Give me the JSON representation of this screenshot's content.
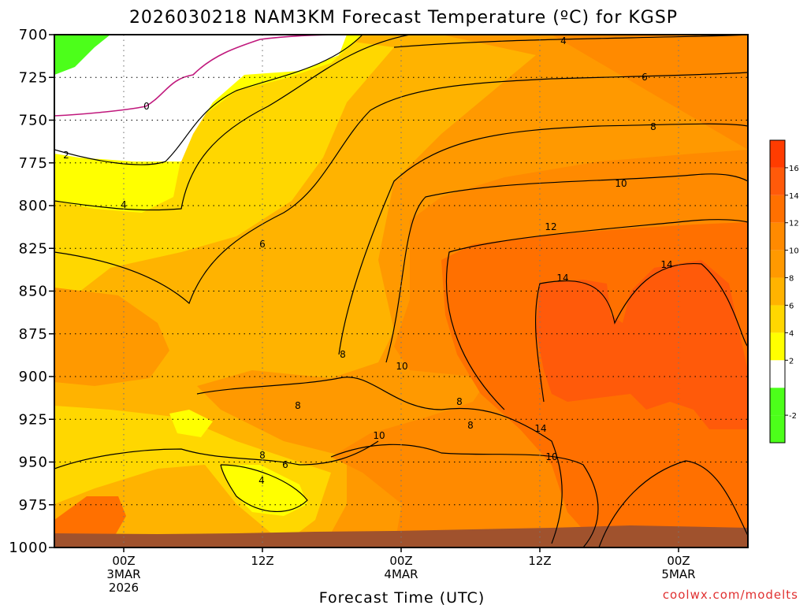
{
  "chart_data": {
    "type": "heatmap",
    "title": "2026030218 NAM3KM Forecast Temperature (ºC) for KGSP",
    "xlabel": "Forecast Time (UTC)",
    "ylabel": "",
    "credit": "coolwx.com/modelts",
    "y_ticks": [
      "700",
      "725",
      "750",
      "775",
      "800",
      "825",
      "850",
      "875",
      "900",
      "925",
      "950",
      "975",
      "1000"
    ],
    "y_range_hpa": [
      700,
      1000
    ],
    "x_ticks": [
      {
        "hour": 6,
        "line1": "00Z",
        "line2": "3MAR",
        "line3": "2026"
      },
      {
        "hour": 18,
        "line1": "12Z",
        "line2": "",
        "line3": ""
      },
      {
        "hour": 30,
        "line1": "00Z",
        "line2": "4MAR",
        "line3": ""
      },
      {
        "hour": 42,
        "line1": "12Z",
        "line2": "",
        "line3": ""
      },
      {
        "hour": 54,
        "line1": "00Z",
        "line2": "5MAR",
        "line3": ""
      }
    ],
    "x_range_hours": [
      0,
      60
    ],
    "grid": true,
    "colorbar": {
      "bins": [
        {
          "from": -4,
          "to": -2,
          "color": "#4cff1a"
        },
        {
          "from": -2,
          "to": 0,
          "color": "#4cff1a"
        },
        {
          "from": 0,
          "to": 2,
          "color": "#ffffff"
        },
        {
          "from": 2,
          "to": 4,
          "color": "#ffff00"
        },
        {
          "from": 4,
          "to": 6,
          "color": "#ffd700"
        },
        {
          "from": 6,
          "to": 8,
          "color": "#ffb300"
        },
        {
          "from": 8,
          "to": 10,
          "color": "#ff9900"
        },
        {
          "from": 10,
          "to": 12,
          "color": "#ff8a00"
        },
        {
          "from": 12,
          "to": 14,
          "color": "#ff7000"
        },
        {
          "from": 14,
          "to": 16,
          "color": "#ff5a0a"
        },
        {
          "from": 16,
          "to": 18,
          "color": "#ff3c00"
        }
      ],
      "tick_labels": [
        "-2",
        "2",
        "4",
        "6",
        "8",
        "10",
        "12",
        "14",
        "16"
      ]
    },
    "contour_labels": [
      "0",
      "2",
      "4",
      "4",
      "4",
      "6",
      "6",
      "6",
      "8",
      "8",
      "8",
      "8",
      "8",
      "8",
      "10",
      "10",
      "10",
      "10",
      "12",
      "14",
      "14",
      "14"
    ],
    "surface_color": "#a0522d"
  }
}
